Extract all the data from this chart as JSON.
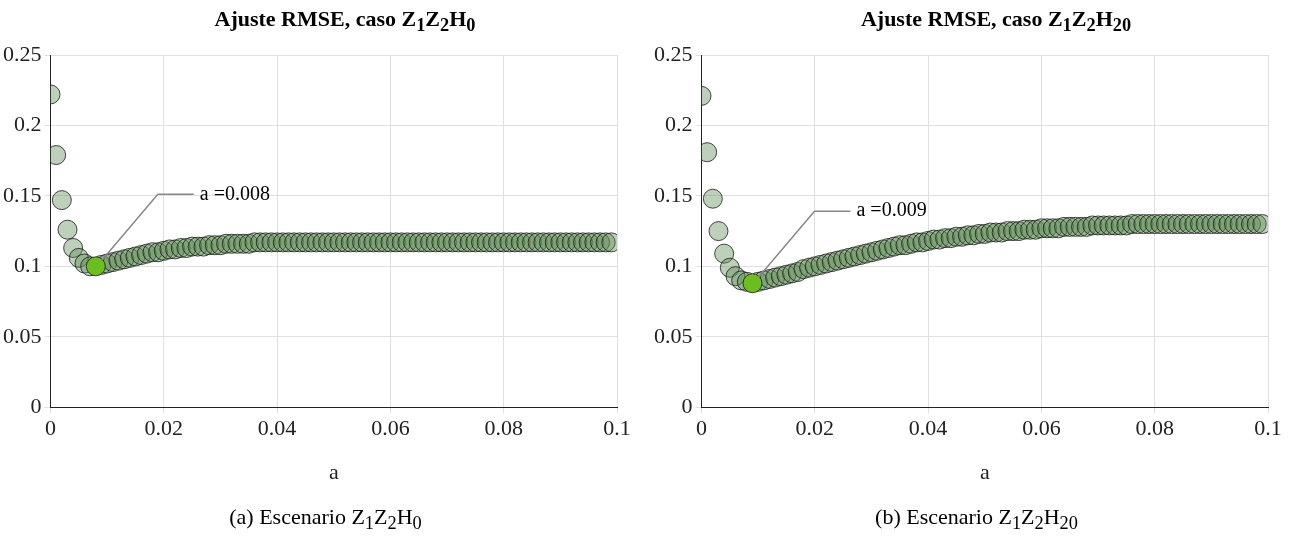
{
  "chart_data": [
    {
      "type": "scatter",
      "title": "Ajuste RMSE, caso Z$_{1}$Z$_{2}$H$_{0}$",
      "xlabel": "a",
      "x": [
        0,
        0.001,
        0.002,
        0.003,
        0.004,
        0.005,
        0.006,
        0.007,
        0.008,
        0.009,
        0.01,
        0.011,
        0.012,
        0.013,
        0.014,
        0.015,
        0.016,
        0.017,
        0.018,
        0.019,
        0.02,
        0.021,
        0.022,
        0.023,
        0.024,
        0.025,
        0.026,
        0.027,
        0.028,
        0.029,
        0.03,
        0.031,
        0.032,
        0.033,
        0.034,
        0.035,
        0.036,
        0.037,
        0.038,
        0.039,
        0.04,
        0.041,
        0.042,
        0.043,
        0.044,
        0.045,
        0.046,
        0.047,
        0.048,
        0.049,
        0.05,
        0.051,
        0.052,
        0.053,
        0.054,
        0.055,
        0.056,
        0.057,
        0.058,
        0.059,
        0.06,
        0.061,
        0.062,
        0.063,
        0.064,
        0.065,
        0.066,
        0.067,
        0.068,
        0.069,
        0.07,
        0.071,
        0.072,
        0.073,
        0.074,
        0.075,
        0.076,
        0.077,
        0.078,
        0.079,
        0.08,
        0.081,
        0.082,
        0.083,
        0.084,
        0.085,
        0.086,
        0.087,
        0.088,
        0.089,
        0.09,
        0.091,
        0.092,
        0.093,
        0.094,
        0.095,
        0.096,
        0.097,
        0.098,
        0.099
      ],
      "series": [
        {
          "color": "#5a8a4f",
          "values": [
            0.222,
            0.179,
            0.147,
            0.126,
            0.113,
            0.106,
            0.102,
            0.1,
            null,
            0.101,
            0.102,
            0.103,
            0.104,
            0.105,
            0.106,
            0.107,
            0.108,
            0.109,
            0.11,
            0.11,
            0.111,
            0.112,
            0.112,
            0.113,
            0.113,
            0.114,
            0.114,
            0.114,
            0.115,
            0.115,
            0.115,
            0.116,
            0.116,
            0.116,
            0.116,
            0.116,
            0.117,
            0.117,
            0.117,
            0.117,
            0.117,
            0.117,
            0.117,
            0.117,
            0.117,
            0.117,
            0.117,
            0.117,
            0.117,
            0.117,
            0.117,
            0.117,
            0.117,
            0.117,
            0.117,
            0.117,
            0.117,
            0.117,
            0.117,
            0.117,
            0.117,
            0.117,
            0.117,
            0.117,
            0.117,
            0.117,
            0.117,
            0.117,
            0.117,
            0.117,
            0.117,
            0.117,
            0.117,
            0.117,
            0.117,
            0.117,
            0.117,
            0.117,
            0.117,
            0.117,
            0.117,
            0.117,
            0.117,
            0.117,
            0.117,
            0.117,
            0.117,
            0.117,
            0.117,
            0.117,
            0.117,
            0.117,
            0.117,
            0.117,
            0.117,
            0.117,
            0.117,
            0.117,
            0.117,
            0.117
          ]
        },
        {
          "color": "#6cbd1f",
          "x": [
            0.008
          ],
          "values": [
            0.1
          ]
        }
      ],
      "xlim": [
        0,
        0.1
      ],
      "xticks": [
        0,
        0.02,
        0.04,
        0.06,
        0.08,
        0.1
      ],
      "ylim": [
        0,
        0.25
      ],
      "yticks": [
        0,
        0.05,
        0.1,
        0.15,
        0.2,
        0.25
      ],
      "grid": true,
      "marker": "circle",
      "annotations": [
        {
          "text": "a =0.008",
          "x": 0.008,
          "y": 0.1
        },
        "(a) Escenario Z$_{1}$Z$_{2}$H$_{0}$"
      ]
    },
    {
      "type": "scatter",
      "title": "Ajuste RMSE, caso Z$_{1}$Z$_{2}$H$_{20}$",
      "xlabel": "a",
      "x": [
        0,
        0.001,
        0.002,
        0.003,
        0.004,
        0.005,
        0.006,
        0.007,
        0.008,
        0.009,
        0.01,
        0.011,
        0.012,
        0.013,
        0.014,
        0.015,
        0.016,
        0.017,
        0.018,
        0.019,
        0.02,
        0.021,
        0.022,
        0.023,
        0.024,
        0.025,
        0.026,
        0.027,
        0.028,
        0.029,
        0.03,
        0.031,
        0.032,
        0.033,
        0.034,
        0.035,
        0.036,
        0.037,
        0.038,
        0.039,
        0.04,
        0.041,
        0.042,
        0.043,
        0.044,
        0.045,
        0.046,
        0.047,
        0.048,
        0.049,
        0.05,
        0.051,
        0.052,
        0.053,
        0.054,
        0.055,
        0.056,
        0.057,
        0.058,
        0.059,
        0.06,
        0.061,
        0.062,
        0.063,
        0.064,
        0.065,
        0.066,
        0.067,
        0.068,
        0.069,
        0.07,
        0.071,
        0.072,
        0.073,
        0.074,
        0.075,
        0.076,
        0.077,
        0.078,
        0.079,
        0.08,
        0.081,
        0.082,
        0.083,
        0.084,
        0.085,
        0.086,
        0.087,
        0.088,
        0.089,
        0.09,
        0.091,
        0.092,
        0.093,
        0.094,
        0.095,
        0.096,
        0.097,
        0.098,
        0.099
      ],
      "series": [
        {
          "color": "#5a8a4f",
          "values": [
            0.221,
            0.181,
            0.148,
            0.125,
            0.109,
            0.099,
            0.093,
            0.09,
            0.089,
            null,
            0.089,
            0.09,
            0.091,
            0.092,
            0.093,
            0.094,
            0.095,
            0.096,
            0.098,
            0.099,
            0.1,
            0.101,
            0.102,
            0.103,
            0.104,
            0.105,
            0.106,
            0.107,
            0.108,
            0.109,
            0.11,
            0.111,
            0.112,
            0.113,
            0.114,
            0.115,
            0.115,
            0.116,
            0.117,
            0.117,
            0.118,
            0.119,
            0.119,
            0.12,
            0.12,
            0.121,
            0.121,
            0.122,
            0.122,
            0.123,
            0.123,
            0.124,
            0.124,
            0.124,
            0.125,
            0.125,
            0.125,
            0.126,
            0.126,
            0.126,
            0.127,
            0.127,
            0.127,
            0.127,
            0.128,
            0.128,
            0.128,
            0.128,
            0.128,
            0.129,
            0.129,
            0.129,
            0.129,
            0.129,
            0.129,
            0.129,
            0.13,
            0.13,
            0.13,
            0.13,
            0.13,
            0.13,
            0.13,
            0.13,
            0.13,
            0.13,
            0.13,
            0.13,
            0.13,
            0.13,
            0.13,
            0.13,
            0.13,
            0.13,
            0.13,
            0.13,
            0.13,
            0.13,
            0.13,
            0.13
          ]
        },
        {
          "color": "#6cbd1f",
          "x": [
            0.009
          ],
          "values": [
            0.088
          ]
        }
      ],
      "xlim": [
        0,
        0.1
      ],
      "xticks": [
        0,
        0.02,
        0.04,
        0.06,
        0.08,
        0.1
      ],
      "ylim": [
        0,
        0.25
      ],
      "yticks": [
        0,
        0.05,
        0.1,
        0.15,
        0.2,
        0.25
      ],
      "grid": true,
      "marker": "circle",
      "annotations": [
        {
          "text": "a =0.009",
          "x": 0.009,
          "y": 0.088
        },
        "(b) Escenario Z$_{1}$Z$_{2}$H$_{20}$"
      ]
    }
  ]
}
